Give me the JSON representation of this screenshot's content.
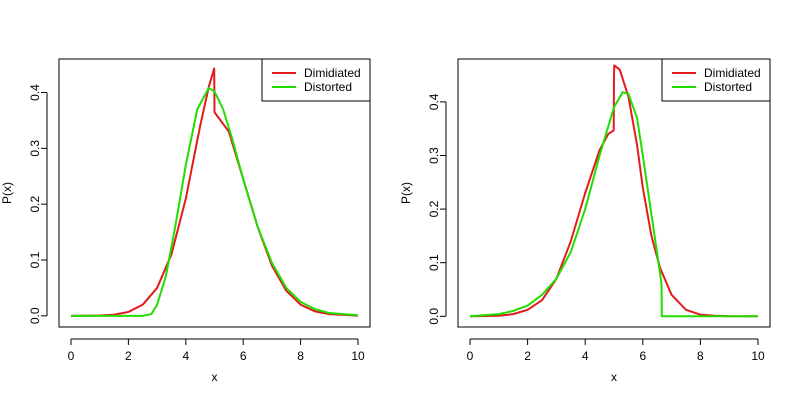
{
  "chart_data": [
    {
      "type": "line",
      "xlabel": "x",
      "ylabel": "P(x)",
      "xlim": [
        0,
        10
      ],
      "ylim": [
        -0.02,
        0.46
      ],
      "x_ticks": [
        0,
        2,
        4,
        6,
        8,
        10
      ],
      "x_tick_labels": [
        "0",
        "2",
        "4",
        "6",
        "8",
        "10"
      ],
      "y_ticks": [
        0,
        0.1,
        0.2,
        0.3,
        0.4
      ],
      "y_tick_labels": [
        "0.0",
        "0.1",
        "0.2",
        "0.3",
        "0.4"
      ],
      "legend_position": "top-right",
      "series": [
        {
          "name": "Dimidiated",
          "color": "#e41a1c",
          "x": [
            0,
            1,
            1.5,
            2,
            2.5,
            3,
            3.5,
            4,
            4.5,
            4.8,
            4.99,
            5,
            5.01,
            5.5,
            6,
            6.5,
            7,
            7.5,
            8,
            8.5,
            9,
            10
          ],
          "y": [
            0,
            0.0005,
            0.002,
            0.007,
            0.02,
            0.05,
            0.11,
            0.21,
            0.34,
            0.41,
            0.443,
            0.365,
            0.364,
            0.33,
            0.245,
            0.16,
            0.09,
            0.045,
            0.02,
            0.008,
            0.003,
            0.0003
          ]
        },
        {
          "name": "Distorted",
          "color": "#22dd00",
          "x": [
            0,
            1,
            2,
            2.5,
            2.8,
            3,
            3.3,
            3.6,
            4,
            4.4,
            4.8,
            5,
            5.3,
            5.6,
            6,
            6.5,
            7,
            7.5,
            8,
            8.5,
            9,
            10
          ],
          "y": [
            0,
            0,
            0,
            0.0,
            0.003,
            0.02,
            0.07,
            0.15,
            0.27,
            0.37,
            0.408,
            0.402,
            0.37,
            0.32,
            0.245,
            0.16,
            0.095,
            0.05,
            0.025,
            0.012,
            0.005,
            0.001
          ]
        }
      ]
    },
    {
      "type": "line",
      "xlabel": "x",
      "ylabel": "P(x)",
      "xlim": [
        0,
        10
      ],
      "ylim": [
        -0.02,
        0.48
      ],
      "x_ticks": [
        0,
        2,
        4,
        6,
        8,
        10
      ],
      "x_tick_labels": [
        "0",
        "2",
        "4",
        "6",
        "8",
        "10"
      ],
      "y_ticks": [
        0,
        0.1,
        0.2,
        0.3,
        0.4
      ],
      "y_tick_labels": [
        "0.0",
        "0.1",
        "0.2",
        "0.3",
        "0.4"
      ],
      "legend_position": "top-right",
      "series": [
        {
          "name": "Dimidiated",
          "color": "#e41a1c",
          "x": [
            0,
            1,
            1.5,
            2,
            2.5,
            3,
            3.5,
            4,
            4.5,
            4.8,
            4.99,
            5,
            5.01,
            5.2,
            5.5,
            5.8,
            6,
            6.3,
            6.6,
            7,
            7.5,
            8,
            8.5,
            9,
            10
          ],
          "y": [
            0,
            0.001,
            0.004,
            0.012,
            0.03,
            0.07,
            0.14,
            0.23,
            0.31,
            0.34,
            0.347,
            0.45,
            0.468,
            0.46,
            0.41,
            0.32,
            0.24,
            0.15,
            0.09,
            0.04,
            0.012,
            0.003,
            0.001,
            0.0002,
            0
          ]
        },
        {
          "name": "Distorted",
          "color": "#22dd00",
          "x": [
            0,
            1,
            1.5,
            2,
            2.5,
            3,
            3.5,
            4,
            4.5,
            5,
            5.3,
            5.5,
            5.8,
            6,
            6.3,
            6.6,
            6.65,
            6.66,
            7,
            8,
            9,
            10
          ],
          "y": [
            0,
            0.004,
            0.01,
            0.02,
            0.04,
            0.07,
            0.12,
            0.2,
            0.3,
            0.39,
            0.418,
            0.415,
            0.37,
            0.3,
            0.19,
            0.08,
            0.06,
            0,
            0,
            0,
            0,
            0
          ]
        }
      ]
    }
  ]
}
